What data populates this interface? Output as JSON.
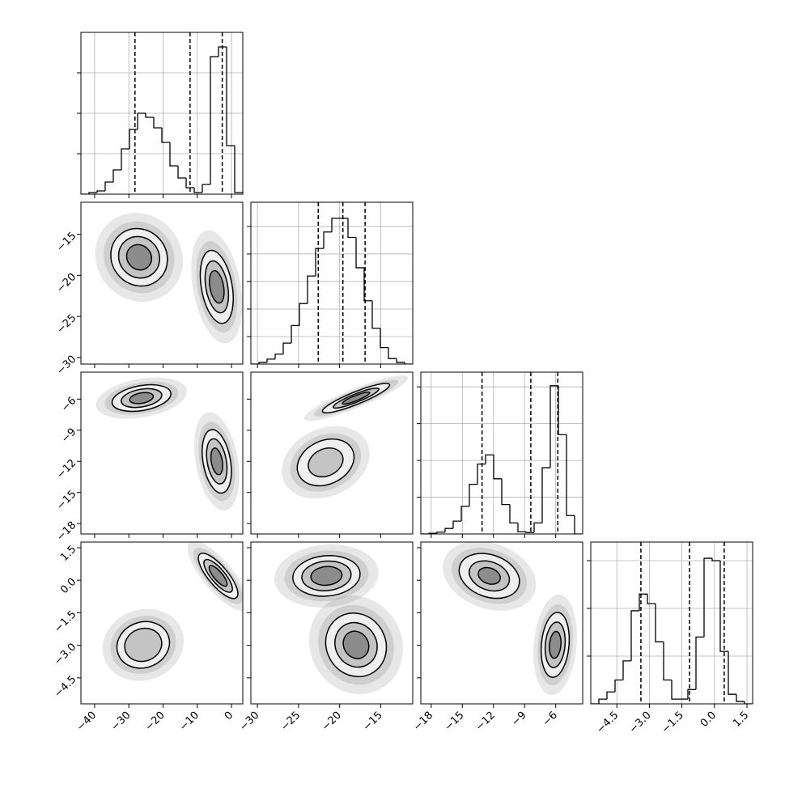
{
  "chart_data": {
    "type": "corner",
    "line_color": "#000000",
    "params": [
      {
        "lim": [
          -44,
          3.3
        ],
        "ticks": [
          {
            "value": -40,
            "label": "−40"
          },
          {
            "value": -30,
            "label": "−30"
          },
          {
            "value": -20,
            "label": "−20"
          },
          {
            "value": -10,
            "label": "−10"
          },
          0
        ]
      },
      {
        "lim": [
          -30.8,
          -11.1
        ],
        "ticks": [
          {
            "value": -30,
            "label": "−30"
          },
          {
            "value": -25,
            "label": "−25"
          },
          {
            "value": -20,
            "label": "−20"
          },
          {
            "value": -15,
            "label": "−15"
          }
        ]
      },
      {
        "lim": [
          -19,
          -3.4
        ],
        "ticks": [
          {
            "value": -18,
            "label": "−18"
          },
          {
            "value": -15,
            "label": "−15"
          },
          {
            "value": -12,
            "label": "−12"
          },
          {
            "value": -9,
            "label": "−9"
          },
          {
            "value": -6,
            "label": "−6"
          }
        ]
      },
      {
        "lim": [
          -5.7,
          1.76
        ],
        "ticks": [
          {
            "value": -4.5,
            "label": "−4.5"
          },
          {
            "value": -3.0,
            "label": "−3.0"
          },
          {
            "value": -1.5,
            "label": "−1.5"
          },
          {
            "value": 0.0,
            "label": "0.0"
          },
          1.5
        ]
      }
    ],
    "histograms": [
      {
        "bins": [
          -44,
          -41.635,
          -39.27,
          -36.905,
          -34.54,
          -32.175,
          -29.81,
          -27.445,
          -25.08,
          -22.715,
          -20.35,
          -17.985,
          -15.62,
          -13.255,
          -10.89,
          -8.525,
          -6.16,
          -3.795,
          -1.43,
          0.935,
          3.3
        ],
        "counts": [
          0,
          40,
          80,
          300,
          600,
          1120,
          1600,
          2000,
          1900,
          1640,
          1280,
          700,
          400,
          160,
          40,
          240,
          3400,
          3640,
          1200,
          40
        ],
        "ylim": [
          0,
          4000
        ],
        "yticks": [
          1000,
          2000,
          3000
        ],
        "quantiles": [
          -28.2,
          -12.1,
          -2.7
        ],
        "grid": true
      },
      {
        "bins": [
          -30.8,
          -29.815,
          -28.83,
          -27.845,
          -26.86,
          -25.875,
          -24.89,
          -23.905,
          -22.92,
          -21.935,
          -20.95,
          -19.965,
          -18.98,
          -17.995,
          -17.01,
          -16.025,
          -15.04,
          -14.055,
          -13.07,
          -12.085,
          -11.1
        ],
        "counts": [
          0,
          30,
          90,
          180,
          380,
          700,
          1100,
          1600,
          2100,
          2400,
          2650,
          2650,
          2300,
          1750,
          1150,
          650,
          300,
          100,
          30,
          0
        ],
        "ylim": [
          0,
          2940
        ],
        "yticks": [
          500,
          1000,
          1500,
          2000,
          2500
        ],
        "quantiles": [
          -22.6,
          -19.6,
          -16.9
        ],
        "grid": true
      },
      {
        "bins": [
          -19,
          -18.22,
          -17.44,
          -16.66,
          -15.88,
          -15.1,
          -14.32,
          -13.54,
          -12.76,
          -11.98,
          -11.2,
          -10.42,
          -9.64,
          -8.86,
          -8.08,
          -7.3,
          -6.52,
          -5.74,
          -4.96,
          -4.18,
          -3.4
        ],
        "counts": [
          0,
          20,
          50,
          150,
          350,
          750,
          1350,
          1900,
          2150,
          1500,
          800,
          300,
          60,
          40,
          300,
          1800,
          4030,
          2700,
          500,
          0
        ],
        "ylim": [
          0,
          4400
        ],
        "yticks": [
          1000,
          2000,
          3000,
          4000
        ],
        "quantiles": [
          -13.1,
          -8.4,
          -5.8
        ],
        "grid": true
      },
      {
        "bins": [
          -5.7,
          -5.327,
          -4.954,
          -4.581,
          -4.208,
          -3.835,
          -3.462,
          -3.089,
          -2.716,
          -2.343,
          -1.97,
          -1.597,
          -1.224,
          -0.851,
          -0.478,
          -0.105,
          0.268,
          0.641,
          1.014,
          1.387,
          1.76
        ],
        "counts": [
          0,
          100,
          250,
          500,
          900,
          1950,
          2300,
          2100,
          1300,
          500,
          100,
          100,
          300,
          1400,
          3050,
          3000,
          1100,
          200,
          50,
          0
        ],
        "ylim": [
          0,
          3390
        ],
        "yticks": [
          1000,
          2000,
          3000
        ],
        "quantiles": [
          -3.39,
          -1.15,
          0.45
        ],
        "grid": true
      }
    ],
    "pairs": [
      {
        "blobs": [
          {
            "center": [
              -27,
              -17.8
            ],
            "angle": -40,
            "levels": [
              [
                8,
                3.6
              ],
              [
                5.8,
                2.6
              ],
              [
                3.5,
                1.6
              ]
            ]
          },
          {
            "center": [
              -4.3,
              -21.4
            ],
            "angle": -10,
            "levels": [
              [
                4.5,
                4.5
              ],
              [
                3.2,
                3.2
              ],
              [
                2,
                2
              ]
            ]
          }
        ]
      },
      {
        "blobs": [
          {
            "center": [
              -26.3,
              -5.9
            ],
            "angle": -10,
            "levels": [
              [
                8.7,
                1.2
              ],
              [
                6,
                0.85
              ],
              [
                3.5,
                0.5
              ]
            ]
          },
          {
            "center": [
              -4.3,
              -12.0
            ],
            "angle": -10,
            "levels": [
              [
                4,
                3.1
              ],
              [
                2.8,
                2.2
              ],
              [
                1.6,
                1.3
              ]
            ]
          }
        ]
      },
      {
        "blobs": [
          {
            "center": [
              -18.0,
              -5.9
            ],
            "angle": -22,
            "levels": [
              [
                4.4,
                0.6
              ],
              [
                3,
                0.4
              ],
              [
                1.8,
                0.25
              ]
            ]
          },
          {
            "center": [
              -21.7,
              -12.1
            ],
            "angle": -25,
            "levels": [
              [
                3.6,
                2.1
              ],
              [
                2.2,
                1.3
              ]
            ]
          }
        ]
      },
      {
        "blobs": [
          {
            "center": [
              -3.9,
              0.2
            ],
            "angle": 50,
            "levels": [
              [
                8.3,
                0.45
              ],
              [
                6,
                0.32
              ],
              [
                3.8,
                0.2
              ]
            ]
          },
          {
            "center": [
              -25.8,
              -2.98
            ],
            "angle": -20,
            "levels": [
              [
                7.8,
                1.05
              ],
              [
                5.5,
                0.75
              ]
            ]
          }
        ]
      },
      {
        "blobs": [
          {
            "center": [
              -21.6,
              0.2
            ],
            "angle": -5,
            "levels": [
              [
                4.1,
                0.93
              ],
              [
                3,
                0.68
              ],
              [
                1.9,
                0.43
              ]
            ]
          },
          {
            "center": [
              -18.0,
              -2.98
            ],
            "angle": -30,
            "levels": [
              [
                3.6,
                1.5
              ],
              [
                2.5,
                1.05
              ],
              [
                1.5,
                0.65
              ]
            ]
          }
        ]
      },
      {
        "blobs": [
          {
            "center": [
              -12.4,
              0.2
            ],
            "angle": 20,
            "levels": [
              [
                3,
                0.97
              ],
              [
                2,
                0.65
              ],
              [
                1.1,
                0.36
              ]
            ]
          },
          {
            "center": [
              -6.05,
              -2.98
            ],
            "angle": 5,
            "levels": [
              [
                1.33,
                1.5
              ],
              [
                0.95,
                1.05
              ],
              [
                0.55,
                0.62
              ]
            ]
          }
        ]
      }
    ]
  }
}
